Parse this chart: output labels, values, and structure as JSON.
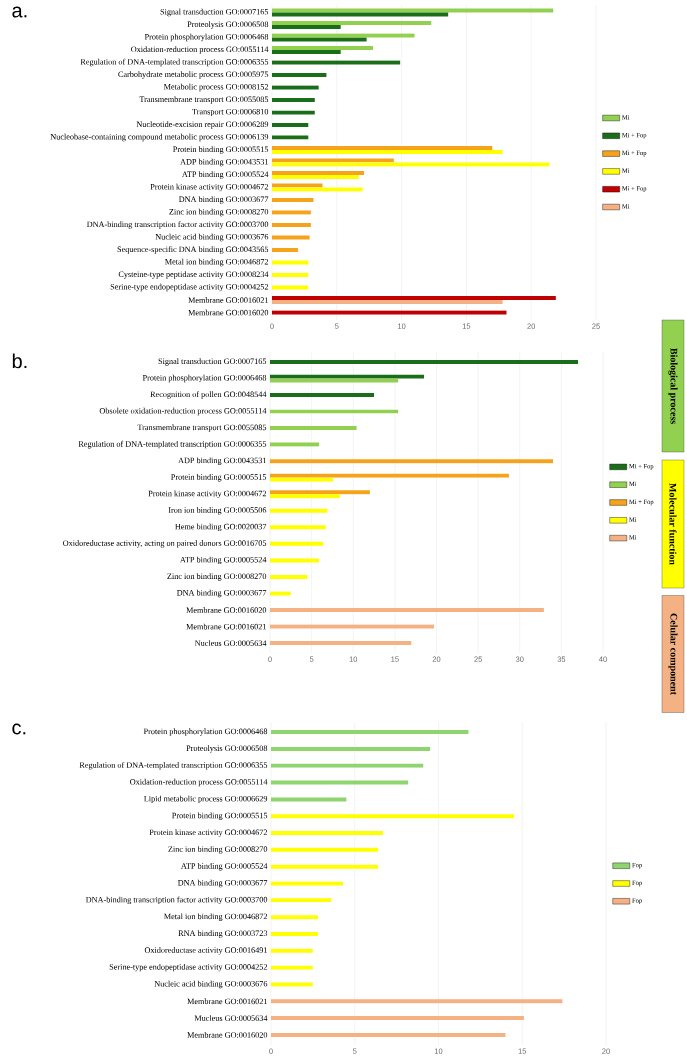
{
  "chart_data": [
    {
      "type": "bar",
      "orientation": "horizontal",
      "title": "a.",
      "grid": "x",
      "legend": "right",
      "xlim": [
        0,
        25
      ],
      "xticks": [
        0,
        5,
        10,
        15,
        20,
        25
      ],
      "categories": [
        "Signal transduction GO:0007165",
        "Proteolysis GO:0006508",
        "Protein phosphorylation GO:0006468",
        "Oxidation-reduction process GO:0055114",
        "Regulation of DNA-templated transcription GO:0006355",
        "Carbohydrate metabolic process GO:0005975",
        "Metabolic process GO:0008152",
        "Transmembrane transport GO:0055085",
        "Transport GO:0006810",
        "Nucleotide-excision repair GO:0006289",
        "Nucleobase-containing compound metabolic process GO:0006139",
        "Protein binding GO:0005515",
        "ADP binding GO:0043531",
        "ATP binding GO:0005524",
        "Protein kinase activity GO:0004672",
        "DNA binding GO:0003677",
        "Zinc ion binding GO:0008270",
        "DNA-binding transcription factor activity GO:0003700",
        "Nucleic acid binding GO:0003676",
        "Sequence-specific DNA binding GO:0043565",
        "Metal ion binding GO:0046872",
        "Cysteine-type peptidase activity GO:0008234",
        "Serine-type endopeptidase activity GO:0004252",
        "Membrane GO:0016021",
        "Membrane GO:0016020"
      ],
      "series": [
        {
          "name": "Mi",
          "color": "#92d050",
          "values": [
            21.7,
            12.3,
            11.0,
            7.8,
            null,
            null,
            null,
            null,
            null,
            null,
            null,
            null,
            null,
            null,
            null,
            null,
            null,
            null,
            null,
            null,
            null,
            null,
            null,
            null,
            null
          ]
        },
        {
          "name": "Mi + Fop",
          "color": "#1a6e1a",
          "values": [
            13.6,
            5.3,
            7.3,
            5.3,
            9.9,
            4.2,
            3.6,
            3.3,
            3.3,
            2.8,
            2.8,
            null,
            null,
            null,
            null,
            null,
            null,
            null,
            null,
            null,
            null,
            null,
            null,
            null,
            null
          ]
        },
        {
          "name": "Mi + Fop",
          "color": "#f5a31a",
          "values": [
            null,
            null,
            null,
            null,
            null,
            null,
            null,
            null,
            null,
            null,
            null,
            17.0,
            9.4,
            7.1,
            3.9,
            3.2,
            3.0,
            3.0,
            2.9,
            2.0,
            null,
            null,
            null,
            null,
            null
          ]
        },
        {
          "name": "Mi",
          "color": "#ffff00",
          "values": [
            null,
            null,
            null,
            null,
            null,
            null,
            null,
            null,
            null,
            null,
            null,
            17.8,
            21.4,
            6.7,
            7.0,
            null,
            null,
            null,
            null,
            null,
            2.8,
            2.8,
            2.8,
            null,
            null
          ]
        },
        {
          "name": "Mi + Fop",
          "color": "#c00000",
          "values": [
            null,
            null,
            null,
            null,
            null,
            null,
            null,
            null,
            null,
            null,
            null,
            null,
            null,
            null,
            null,
            null,
            null,
            null,
            null,
            null,
            null,
            null,
            null,
            21.9,
            18.1
          ]
        },
        {
          "name": "Mi",
          "color": "#f4b183",
          "values": [
            null,
            null,
            null,
            null,
            null,
            null,
            null,
            null,
            null,
            null,
            null,
            null,
            null,
            null,
            null,
            null,
            null,
            null,
            null,
            null,
            null,
            null,
            null,
            17.8,
            null
          ]
        }
      ]
    },
    {
      "type": "bar",
      "orientation": "horizontal",
      "title": "b.",
      "grid": "x",
      "legend": "right",
      "xlim": [
        0,
        40
      ],
      "xticks": [
        0,
        5,
        10,
        15,
        20,
        25,
        30,
        35,
        40
      ],
      "annotations": [
        "Biological process",
        "Molecular function",
        "Celular component"
      ],
      "categories": [
        "Signal transduction GO:0007165",
        "Protein phosphorylation GO:0006468",
        "Recognition of pollen GO:0048544",
        "Obsolete oxidation-reduction process GO:0055114",
        "Transmembrane transport GO:0055085",
        "Regulation of DNA-templated transcription GO:0006355",
        "ADP binding GO:0043531",
        "Protein binding GO:0005515",
        "Protein kinase activity GO:0004672",
        "Iron ion binding GO:0005506",
        "Heme binding GO:0020037",
        "Oxidoreductase activity, acting on paired donors GO:0016705",
        "ATP binding GO:0005524",
        "Zinc ion binding GO:0008270",
        "DNA binding GO:0003677",
        "Membrane GO:0016020",
        "Membrane GO:0016021",
        "Nucleus GO:0005634"
      ],
      "series": [
        {
          "name": "Mi + Fop",
          "color": "#1a6e1a",
          "values": [
            37.0,
            18.5,
            12.5,
            null,
            null,
            null,
            null,
            null,
            null,
            null,
            null,
            null,
            null,
            null,
            null,
            null,
            null,
            null
          ]
        },
        {
          "name": "Mi",
          "color": "#92d050",
          "values": [
            null,
            15.4,
            null,
            15.4,
            10.4,
            5.9,
            null,
            null,
            null,
            null,
            null,
            null,
            null,
            null,
            null,
            null,
            null,
            null
          ]
        },
        {
          "name": "Mi + Fop",
          "color": "#f5a31a",
          "values": [
            null,
            null,
            null,
            null,
            null,
            null,
            34.0,
            28.7,
            12.0,
            null,
            null,
            null,
            null,
            null,
            null,
            null,
            null,
            null
          ]
        },
        {
          "name": "Mi",
          "color": "#ffff00",
          "values": [
            null,
            null,
            null,
            null,
            null,
            null,
            null,
            7.6,
            8.4,
            6.9,
            6.7,
            6.4,
            5.9,
            4.5,
            2.5,
            null,
            null,
            null
          ]
        },
        {
          "name": "Mi",
          "color": "#f4b183",
          "values": [
            null,
            null,
            null,
            null,
            null,
            null,
            null,
            null,
            null,
            null,
            null,
            null,
            null,
            null,
            null,
            32.9,
            19.7,
            17.0
          ]
        }
      ]
    },
    {
      "type": "bar",
      "orientation": "horizontal",
      "title": "c.",
      "grid": "x",
      "legend": "right",
      "xlim": [
        0,
        20
      ],
      "xticks": [
        0,
        5,
        10,
        15,
        20
      ],
      "categories": [
        "Protein phosphorylation GO:0006468",
        "Proteolysis GO:0006508",
        "Regulation of DNA-templated transcription GO:0006355",
        "Oxidation-reduction process GO:0055114",
        "Lipid metabolic process GO:0006629",
        "Protein binding GO:0005515",
        "Protein kinase activity GO:0004672",
        "Zinc ion binding GO:0008270",
        "ATP binding GO:0005524",
        "DNA binding GO:0003677",
        "DNA-binding transcription factor activity GO:0003700",
        "Metal ion binding GO:0046872",
        "RNA binding GO:0003723",
        "Oxidoreductase activity GO:0016491",
        "Serine-type endopeptidase activity GO:0004252",
        "Nucleic acid binding GO:0003676",
        "Membrane GO:0016021",
        "Mucleus GO:0005634",
        "Membrane GO:0016020"
      ],
      "series": [
        {
          "name": "Fop",
          "color": "#8fd46f",
          "values": [
            11.8,
            9.5,
            9.1,
            8.2,
            4.5,
            null,
            null,
            null,
            null,
            null,
            null,
            null,
            null,
            null,
            null,
            null,
            null,
            null,
            null
          ]
        },
        {
          "name": "Fop",
          "color": "#ffff00",
          "values": [
            null,
            null,
            null,
            null,
            null,
            14.5,
            6.7,
            6.4,
            6.4,
            4.3,
            3.6,
            2.8,
            2.8,
            2.5,
            2.5,
            2.5,
            null,
            null,
            null
          ]
        },
        {
          "name": "Fop",
          "color": "#f4b183",
          "values": [
            null,
            null,
            null,
            null,
            null,
            null,
            null,
            null,
            null,
            null,
            null,
            null,
            null,
            null,
            null,
            null,
            17.4,
            15.1,
            14.0
          ]
        }
      ]
    }
  ]
}
